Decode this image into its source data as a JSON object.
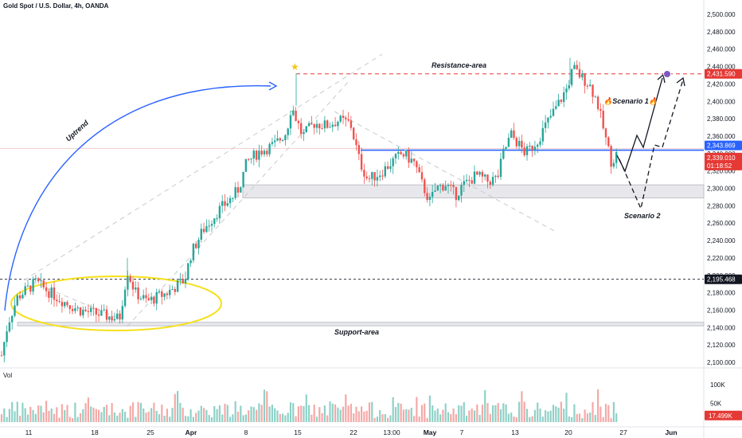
{
  "chart_data": {
    "type": "candlestick",
    "title": "Gold Spot / U.S. Dollar, 4h, OANDA",
    "volume_label": "Vol",
    "yaxis": {
      "ticks": [
        "2,500.000",
        "2,480.000",
        "2,460.000",
        "2,440.000",
        "2,420.000",
        "2,400.000",
        "2,380.000",
        "2,360.000",
        "2,340.000",
        "2,320.000",
        "2,300.000",
        "2,280.000",
        "2,260.000",
        "2,240.000",
        "2,220.000",
        "2,200.000",
        "2,180.000",
        "2,160.000",
        "2,140.000",
        "2,120.000",
        "2,100.000"
      ],
      "tick_values": [
        2500,
        2480,
        2460,
        2440,
        2420,
        2400,
        2380,
        2360,
        2340,
        2320,
        2300,
        2280,
        2260,
        2240,
        2220,
        2200,
        2180,
        2160,
        2140,
        2120,
        2100
      ],
      "range": [
        2100,
        2500
      ]
    },
    "xaxis": {
      "ticks": [
        {
          "label": "11",
          "bold": false
        },
        {
          "label": "18",
          "bold": false
        },
        {
          "label": "25",
          "bold": false
        },
        {
          "label": "Apr",
          "bold": true
        },
        {
          "label": "8",
          "bold": false
        },
        {
          "label": "15",
          "bold": false
        },
        {
          "label": "22",
          "bold": false
        },
        {
          "label": "13:00",
          "bold": false
        },
        {
          "label": "May",
          "bold": true
        },
        {
          "label": "7",
          "bold": false
        },
        {
          "label": "13",
          "bold": false
        },
        {
          "label": "20",
          "bold": false
        },
        {
          "label": "27",
          "bold": false
        },
        {
          "label": "Jun",
          "bold": true
        }
      ]
    },
    "volume_ticks": [
      "100K",
      "50K"
    ],
    "volume_tick_values": [
      100,
      50
    ],
    "price_tags": [
      {
        "label": "2,431.590",
        "value": 2431.59,
        "color": "#e53935"
      },
      {
        "label": "2,343.869",
        "value": 2343.87,
        "color": "#2962ff"
      },
      {
        "label": "2,339.010",
        "value": 2339.01,
        "color": "#e53935"
      },
      {
        "label": "01:18:52",
        "value": 2327.5,
        "color": "#e53935"
      },
      {
        "label": "2,195.468",
        "value": 2195.47,
        "color": "#131722"
      }
    ],
    "volume_tag": {
      "label": "17.499K",
      "value": 17.499,
      "color": "#e53935"
    },
    "annotations": {
      "resistance": "Resistance-area",
      "support": "Support-area",
      "uptrend": "Uptrend",
      "scenario1": "Scenario 1",
      "scenario2": "Scenario 2"
    },
    "levels": {
      "resistance_line": 2431.59,
      "blue_line": 2343.87,
      "dashed_mid": 2195.47,
      "zone_upper": [
        2289,
        2304
      ],
      "zone_lower": [
        2142,
        2146
      ]
    },
    "colors": {
      "up": "#26a69a",
      "down": "#ef5350",
      "blue": "#2962ff",
      "red": "#e53935",
      "yellow": "#f5e01a",
      "zone": "#d1d4dc"
    }
  }
}
